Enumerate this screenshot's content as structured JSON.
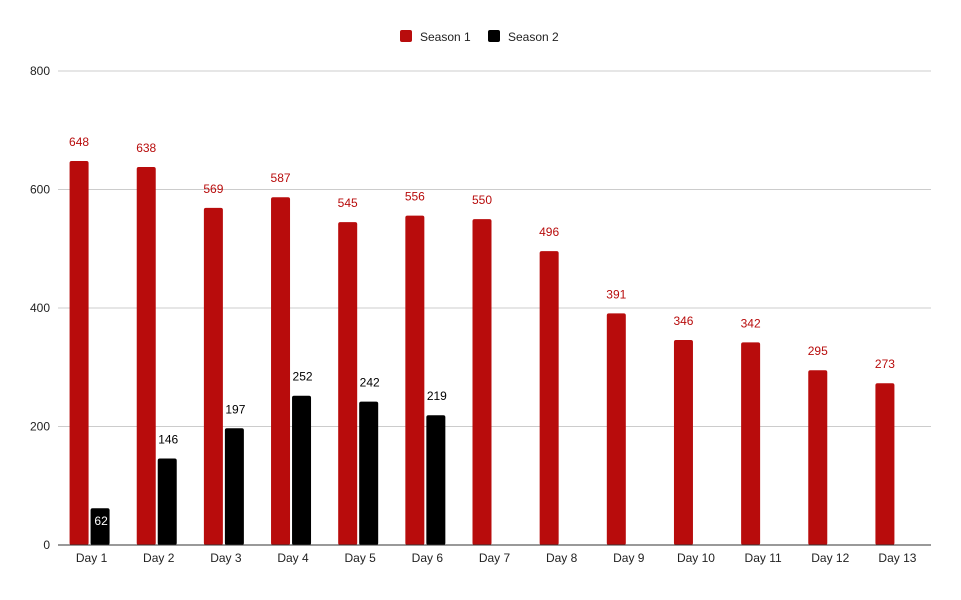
{
  "chart_data": {
    "type": "bar",
    "categories": [
      "Day 1",
      "Day 2",
      "Day 3",
      "Day 4",
      "Day 5",
      "Day 6",
      "Day 7",
      "Day 8",
      "Day 9",
      "Day 10",
      "Day 11",
      "Day 12",
      "Day 13"
    ],
    "series": [
      {
        "name": "Season 1",
        "color": "#b80c0c",
        "label_color": "#b80c0c",
        "values": [
          648,
          638,
          569,
          587,
          545,
          556,
          550,
          496,
          391,
          346,
          342,
          295,
          273
        ]
      },
      {
        "name": "Season 2",
        "color": "#000000",
        "label_color": "#000000",
        "values": [
          62,
          146,
          197,
          252,
          242,
          219,
          null,
          null,
          null,
          null,
          null,
          null,
          null
        ]
      }
    ],
    "ylim": [
      0,
      800
    ],
    "yticks": [
      0,
      200,
      400,
      600,
      800
    ],
    "grid": true,
    "legend_position": "top-center",
    "title": "",
    "xlabel": "",
    "ylabel": ""
  }
}
